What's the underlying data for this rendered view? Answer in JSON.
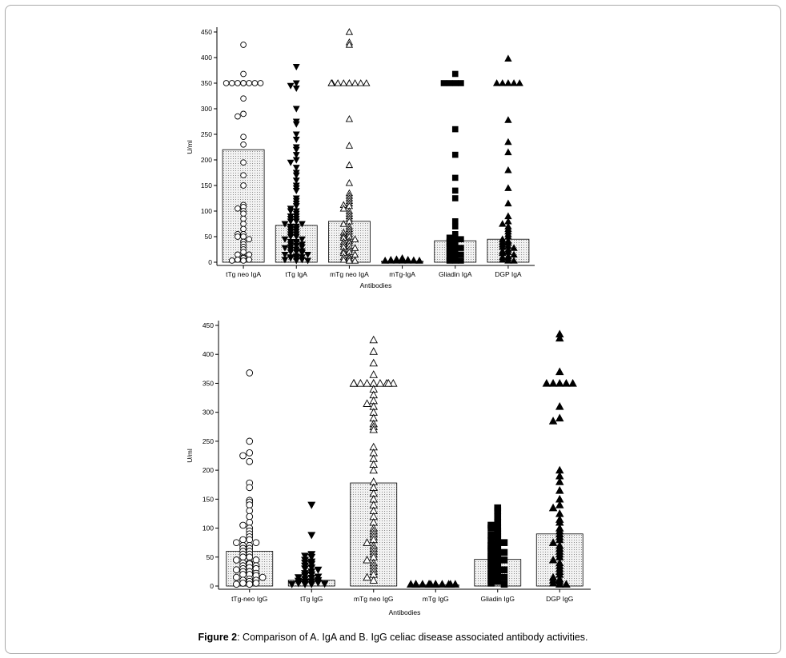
{
  "caption": {
    "label": "Figure 2",
    "text": ": Comparison of A. IgA and B. IgG celiac disease associated antibody activities."
  },
  "chart_data": [
    {
      "type": "scatter",
      "panel": "A",
      "xlabel": "Antibodies",
      "ylabel": "U/ml",
      "ylim": [
        0,
        450
      ],
      "yticks": [
        0,
        50,
        100,
        150,
        200,
        250,
        300,
        350,
        400,
        450
      ],
      "categories": [
        "tTg neo IgA",
        "tTg IgA",
        "mTg neo IgA",
        "mTg-IgA",
        "Gliadin IgA",
        "DGP IgA"
      ],
      "bar_values": [
        220,
        72,
        80,
        2,
        42,
        45
      ],
      "series": [
        {
          "marker": "circle-open",
          "values": [
            425,
            368,
            350,
            350,
            350,
            350,
            350,
            350,
            350,
            350,
            320,
            290,
            285,
            245,
            230,
            195,
            170,
            150,
            112,
            108,
            105,
            100,
            95,
            85,
            75,
            65,
            55,
            55,
            50,
            50,
            45,
            40,
            35,
            30,
            25,
            20,
            15,
            15,
            10,
            8,
            5,
            5,
            3,
            2
          ]
        },
        {
          "marker": "triangle-down-filled",
          "values": [
            382,
            350,
            345,
            340,
            300,
            275,
            270,
            250,
            240,
            225,
            220,
            210,
            200,
            195,
            185,
            175,
            170,
            160,
            150,
            145,
            140,
            125,
            120,
            115,
            110,
            105,
            100,
            100,
            95,
            90,
            90,
            85,
            85,
            80,
            80,
            75,
            75,
            70,
            70,
            65,
            65,
            60,
            60,
            55,
            55,
            50,
            50,
            45,
            45,
            40,
            40,
            38,
            35,
            35,
            32,
            30,
            30,
            28,
            25,
            25,
            22,
            20,
            20,
            18,
            15,
            15,
            12,
            10,
            10,
            8,
            8,
            5,
            5,
            3,
            2
          ]
        },
        {
          "marker": "triangle-up-open",
          "values": [
            450,
            430,
            425,
            350,
            350,
            350,
            350,
            350,
            350,
            350,
            350,
            350,
            280,
            228,
            190,
            155,
            135,
            130,
            125,
            120,
            115,
            112,
            110,
            105,
            100,
            95,
            90,
            85,
            80,
            75,
            70,
            65,
            60,
            58,
            55,
            52,
            50,
            48,
            45,
            42,
            40,
            38,
            35,
            32,
            30,
            28,
            25,
            22,
            20,
            18,
            15,
            12,
            10,
            8,
            5,
            3,
            2
          ]
        },
        {
          "marker": "triangle-up-filled",
          "values": [
            8,
            6,
            5,
            5,
            4,
            3,
            3,
            2,
            2,
            1,
            1,
            0,
            0,
            0
          ]
        },
        {
          "marker": "square-filled",
          "values": [
            368,
            350,
            350,
            350,
            350,
            260,
            210,
            165,
            140,
            125,
            80,
            70,
            55,
            50,
            48,
            45,
            42,
            40,
            38,
            35,
            32,
            30,
            28,
            25,
            22,
            20,
            18,
            15,
            12,
            10,
            8,
            5,
            3,
            2,
            1
          ]
        },
        {
          "marker": "triangle-up-filled",
          "values": [
            398,
            350,
            350,
            350,
            350,
            350,
            278,
            235,
            215,
            180,
            145,
            115,
            90,
            80,
            75,
            70,
            65,
            60,
            55,
            50,
            45,
            42,
            40,
            38,
            35,
            32,
            30,
            28,
            25,
            22,
            20,
            18,
            15,
            12,
            10,
            8,
            5,
            3,
            2
          ]
        }
      ]
    },
    {
      "type": "scatter",
      "panel": "B",
      "xlabel": "Antibodies",
      "ylabel": "U/ml",
      "ylim": [
        0,
        450
      ],
      "yticks": [
        0,
        50,
        100,
        150,
        200,
        250,
        300,
        350,
        400,
        450
      ],
      "categories": [
        "tTg-neo IgG",
        "tTg IgG",
        "mTg neo IgG",
        "mTg IgG",
        "Gliadin IgG",
        "DGP IgG"
      ],
      "bar_values": [
        60,
        10,
        178,
        2,
        46,
        90
      ],
      "series": [
        {
          "marker": "circle-open",
          "values": [
            368,
            250,
            230,
            225,
            215,
            178,
            170,
            148,
            145,
            140,
            130,
            120,
            110,
            105,
            100,
            95,
            90,
            85,
            80,
            80,
            75,
            75,
            70,
            70,
            65,
            65,
            60,
            60,
            55,
            55,
            50,
            50,
            45,
            45,
            40,
            40,
            38,
            35,
            35,
            32,
            30,
            30,
            28,
            25,
            25,
            22,
            20,
            20,
            18,
            15,
            15,
            12,
            10,
            10,
            8,
            5,
            5,
            3,
            2
          ]
        },
        {
          "marker": "triangle-down-filled",
          "values": [
            140,
            88,
            55,
            52,
            50,
            45,
            42,
            40,
            38,
            35,
            32,
            30,
            28,
            25,
            22,
            20,
            18,
            16,
            15,
            14,
            12,
            10,
            9,
            8,
            7,
            6,
            5,
            4,
            3,
            2,
            1
          ]
        },
        {
          "marker": "triangle-up-open",
          "values": [
            425,
            405,
            385,
            365,
            350,
            350,
            350,
            350,
            350,
            350,
            350,
            350,
            350,
            350,
            340,
            330,
            320,
            315,
            310,
            300,
            290,
            280,
            275,
            270,
            240,
            230,
            220,
            210,
            200,
            180,
            170,
            160,
            150,
            140,
            130,
            120,
            110,
            100,
            95,
            90,
            85,
            80,
            75,
            70,
            65,
            60,
            55,
            50,
            45,
            40,
            35,
            30,
            25,
            20,
            15,
            10
          ]
        },
        {
          "marker": "triangle-up-filled",
          "values": [
            3,
            3,
            2,
            2,
            2,
            1,
            1,
            1,
            1,
            0,
            0,
            0,
            0,
            0
          ]
        },
        {
          "marker": "square-filled",
          "values": [
            135,
            130,
            120,
            110,
            105,
            100,
            100,
            95,
            90,
            88,
            85,
            80,
            78,
            75,
            72,
            70,
            68,
            65,
            62,
            60,
            58,
            55,
            52,
            50,
            48,
            45,
            42,
            40,
            38,
            35,
            32,
            30,
            28,
            25,
            22,
            20,
            18,
            15,
            12,
            10,
            8,
            5,
            3
          ]
        },
        {
          "marker": "triangle-up-filled",
          "values": [
            435,
            428,
            370,
            350,
            350,
            350,
            350,
            350,
            310,
            290,
            285,
            200,
            190,
            180,
            165,
            150,
            140,
            135,
            125,
            115,
            110,
            100,
            95,
            90,
            85,
            80,
            75,
            70,
            65,
            60,
            55,
            50,
            45,
            40,
            35,
            30,
            25,
            20,
            15,
            12,
            10,
            8,
            5,
            3,
            2
          ]
        }
      ]
    }
  ]
}
